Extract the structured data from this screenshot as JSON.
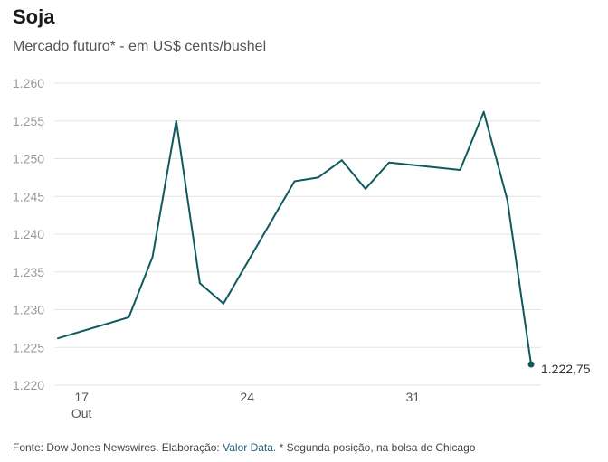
{
  "title": "Soja",
  "subtitle": "Mercado futuro* - em US$ cents/bushel",
  "footer": {
    "prefix": "Fonte: Dow Jones Newswires. Elaboração: ",
    "link": "Valor Data",
    "suffix": ". * Segunda posição, na bolsa de Chicago"
  },
  "colors": {
    "line": "#0f5a5e",
    "grid": "#e3e3e3",
    "tick_text": "#999999",
    "axis_text": "#555555"
  },
  "chart_data": {
    "type": "line",
    "title": "Soja",
    "subtitle": "Mercado futuro* - em US$ cents/bushel",
    "xlabel": "",
    "ylabel": "",
    "ylim": [
      1220,
      1260
    ],
    "y_ticks": [
      1260,
      1255,
      1250,
      1245,
      1240,
      1235,
      1230,
      1225,
      1220
    ],
    "y_tick_labels": [
      "1.260",
      "1.255",
      "1.250",
      "1.245",
      "1.240",
      "1.235",
      "1.230",
      "1.225",
      "1.220"
    ],
    "x_ticks": [
      {
        "x": "2017-10-17",
        "label": "17",
        "sublabel": "Out"
      },
      {
        "x": "2017-10-24",
        "label": "24",
        "sublabel": ""
      },
      {
        "x": "2017-10-31",
        "label": "31",
        "sublabel": ""
      }
    ],
    "grid": true,
    "series": [
      {
        "points": [
          {
            "x": "2017-10-16",
            "y": 1226.2
          },
          {
            "x": "2017-10-19",
            "y": 1229.0
          },
          {
            "x": "2017-10-20",
            "y": 1237.0
          },
          {
            "x": "2017-10-21",
            "y": 1255.0
          },
          {
            "x": "2017-10-22",
            "y": 1233.5
          },
          {
            "x": "2017-10-23",
            "y": 1230.8
          },
          {
            "x": "2017-10-26",
            "y": 1247.0
          },
          {
            "x": "2017-10-27",
            "y": 1247.5
          },
          {
            "x": "2017-10-28",
            "y": 1249.8
          },
          {
            "x": "2017-10-29",
            "y": 1246.0
          },
          {
            "x": "2017-10-30",
            "y": 1249.5
          },
          {
            "x": "2017-11-02",
            "y": 1248.5
          },
          {
            "x": "2017-11-03",
            "y": 1256.2
          },
          {
            "x": "2017-11-04",
            "y": 1244.5
          },
          {
            "x": "2017-11-05",
            "y": 1222.75
          }
        ],
        "last_label": "1.222,75"
      }
    ]
  }
}
